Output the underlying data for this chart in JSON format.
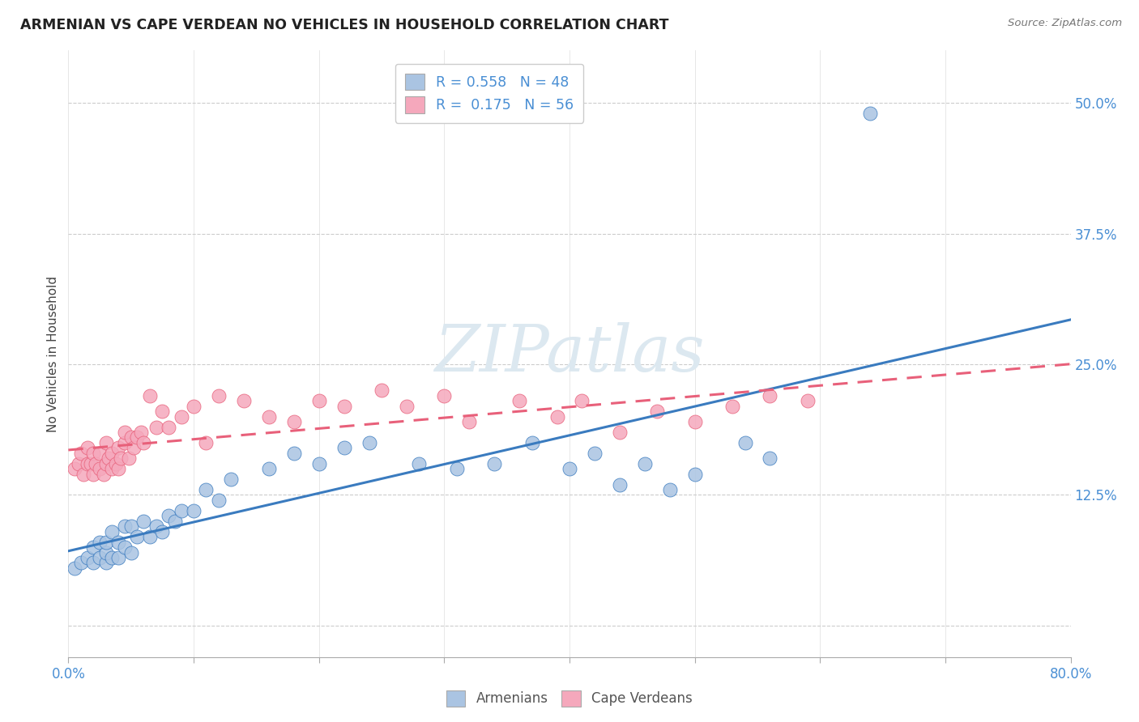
{
  "title": "ARMENIAN VS CAPE VERDEAN NO VEHICLES IN HOUSEHOLD CORRELATION CHART",
  "source": "Source: ZipAtlas.com",
  "ylabel": "No Vehicles in Household",
  "yticks": [
    0.0,
    0.125,
    0.25,
    0.375,
    0.5
  ],
  "ytick_labels": [
    "",
    "12.5%",
    "25.0%",
    "37.5%",
    "50.0%"
  ],
  "xmin": 0.0,
  "xmax": 0.8,
  "ymin": -0.03,
  "ymax": 0.55,
  "armenian_R": 0.558,
  "armenian_N": 48,
  "capeverdean_R": 0.175,
  "capeverdean_N": 56,
  "armenian_color": "#aac4e2",
  "capeverdean_color": "#f5a8bc",
  "armenian_line_color": "#3a7bbf",
  "capeverdean_line_color": "#e8607a",
  "legend_text_color": "#4a8fd4",
  "watermark_color": "#dce8f0",
  "background_color": "#ffffff",
  "armenian_x": [
    0.005,
    0.01,
    0.015,
    0.02,
    0.02,
    0.025,
    0.025,
    0.03,
    0.03,
    0.03,
    0.035,
    0.035,
    0.04,
    0.04,
    0.045,
    0.045,
    0.05,
    0.05,
    0.055,
    0.06,
    0.065,
    0.07,
    0.075,
    0.08,
    0.085,
    0.09,
    0.1,
    0.11,
    0.12,
    0.13,
    0.16,
    0.18,
    0.2,
    0.22,
    0.24,
    0.28,
    0.31,
    0.34,
    0.37,
    0.4,
    0.42,
    0.44,
    0.46,
    0.48,
    0.5,
    0.54,
    0.56,
    0.64
  ],
  "armenian_y": [
    0.055,
    0.06,
    0.065,
    0.06,
    0.075,
    0.065,
    0.08,
    0.06,
    0.07,
    0.08,
    0.065,
    0.09,
    0.065,
    0.08,
    0.075,
    0.095,
    0.07,
    0.095,
    0.085,
    0.1,
    0.085,
    0.095,
    0.09,
    0.105,
    0.1,
    0.11,
    0.11,
    0.13,
    0.12,
    0.14,
    0.15,
    0.165,
    0.155,
    0.17,
    0.175,
    0.155,
    0.15,
    0.155,
    0.175,
    0.15,
    0.165,
    0.135,
    0.155,
    0.13,
    0.145,
    0.175,
    0.16,
    0.49
  ],
  "capeverdean_x": [
    0.005,
    0.008,
    0.01,
    0.012,
    0.015,
    0.015,
    0.018,
    0.02,
    0.02,
    0.022,
    0.025,
    0.025,
    0.028,
    0.03,
    0.03,
    0.032,
    0.035,
    0.035,
    0.038,
    0.04,
    0.04,
    0.042,
    0.045,
    0.045,
    0.048,
    0.05,
    0.052,
    0.055,
    0.058,
    0.06,
    0.065,
    0.07,
    0.075,
    0.08,
    0.09,
    0.1,
    0.11,
    0.12,
    0.14,
    0.16,
    0.18,
    0.2,
    0.22,
    0.25,
    0.27,
    0.3,
    0.32,
    0.36,
    0.39,
    0.41,
    0.44,
    0.47,
    0.5,
    0.53,
    0.56,
    0.59
  ],
  "capeverdean_y": [
    0.15,
    0.155,
    0.165,
    0.145,
    0.155,
    0.17,
    0.155,
    0.145,
    0.165,
    0.155,
    0.15,
    0.165,
    0.145,
    0.155,
    0.175,
    0.16,
    0.15,
    0.165,
    0.155,
    0.15,
    0.17,
    0.16,
    0.175,
    0.185,
    0.16,
    0.18,
    0.17,
    0.18,
    0.185,
    0.175,
    0.22,
    0.19,
    0.205,
    0.19,
    0.2,
    0.21,
    0.175,
    0.22,
    0.215,
    0.2,
    0.195,
    0.215,
    0.21,
    0.225,
    0.21,
    0.22,
    0.195,
    0.215,
    0.2,
    0.215,
    0.185,
    0.205,
    0.195,
    0.21,
    0.22,
    0.215
  ]
}
